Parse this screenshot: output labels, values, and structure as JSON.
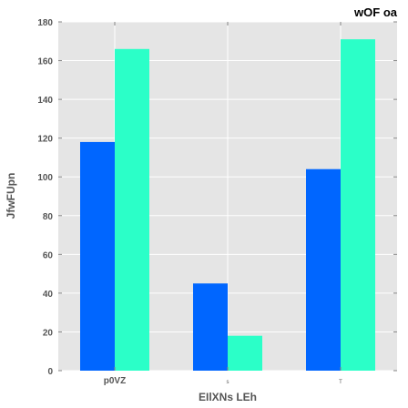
{
  "chart_data": {
    "type": "bar",
    "title": "wOF oa",
    "xlabel": "EIlXNs LEh",
    "ylabel": "JfwFUpn",
    "categories": [
      "p0VZ",
      "s",
      "T"
    ],
    "series": [
      {
        "values": [
          118,
          45,
          104
        ],
        "color": "#0066ff"
      },
      {
        "values": [
          166,
          18,
          171
        ],
        "color": "#2bffc8"
      }
    ],
    "ylim": [
      0,
      180
    ],
    "yticks": [
      0,
      20,
      40,
      60,
      80,
      100,
      120,
      140,
      160,
      180
    ],
    "grid": true,
    "background": "#e5e5e5"
  }
}
